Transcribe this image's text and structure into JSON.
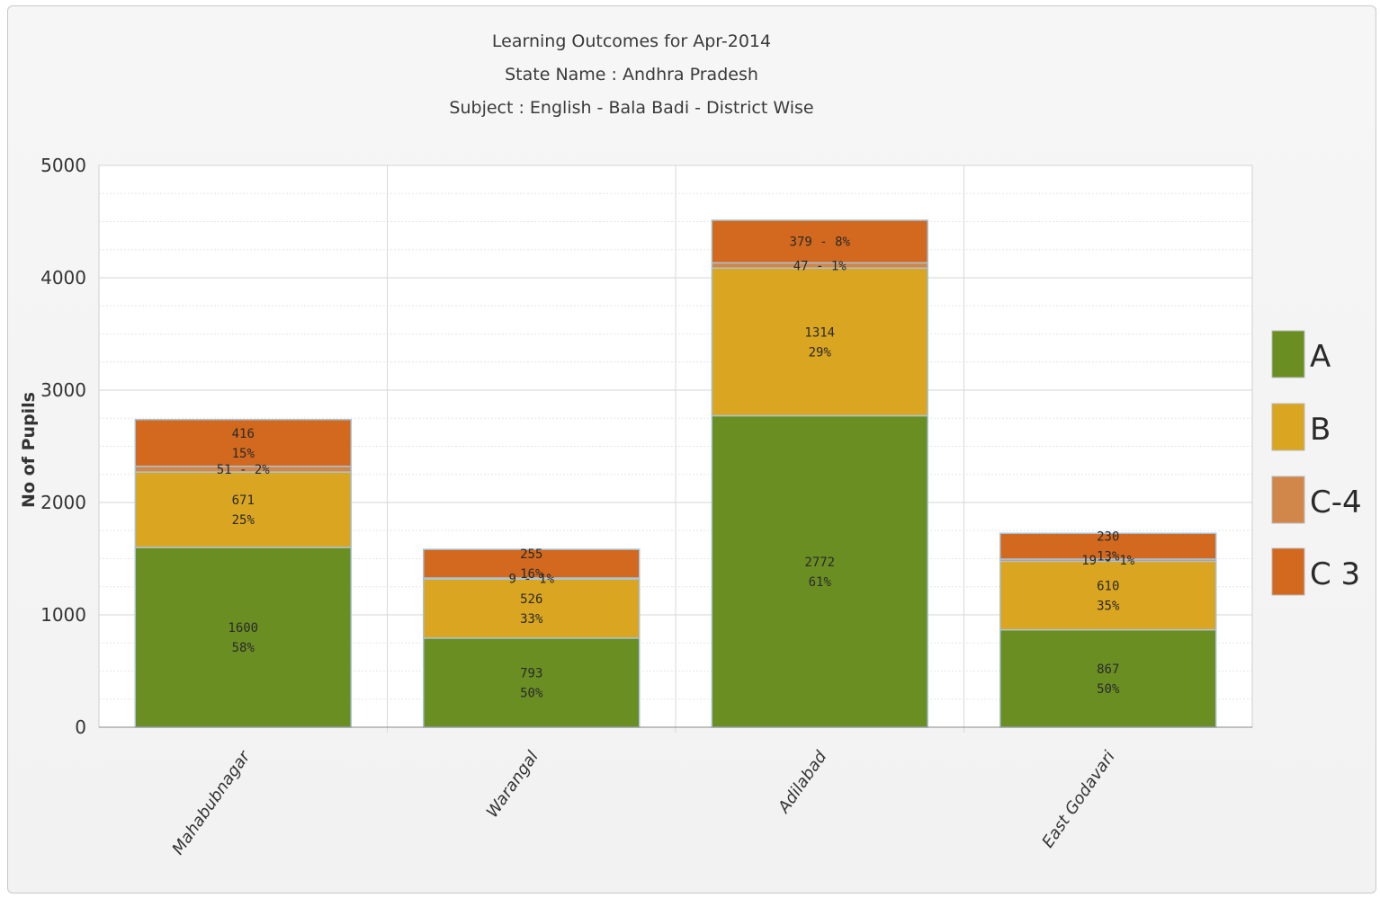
{
  "chart_data": {
    "type": "bar",
    "stacked": true,
    "title_lines": [
      "Learning Outcomes for Apr-2014",
      "State Name : Andhra Pradesh",
      "Subject : English - Bala Badi - District Wise"
    ],
    "xlabel": "",
    "ylabel": "No of Pupils",
    "ylim": [
      0,
      5000
    ],
    "yticks": [
      0,
      1000,
      2000,
      3000,
      4000,
      5000
    ],
    "grid": true,
    "legend_position": "right",
    "categories": [
      "Mahabubnagar",
      "Warangal",
      "Adilabad",
      "East Godavari"
    ],
    "series": [
      {
        "name": "A",
        "color": "#6b8e23",
        "values": [
          1600,
          793,
          2772,
          867
        ],
        "labels": [
          [
            "1600",
            "58%"
          ],
          [
            "793",
            "50%"
          ],
          [
            "2772",
            "61%"
          ],
          [
            "867",
            "50%"
          ]
        ]
      },
      {
        "name": "B",
        "color": "#daa520",
        "values": [
          671,
          526,
          1314,
          610
        ],
        "labels": [
          [
            "671",
            "25%"
          ],
          [
            "526",
            "33%"
          ],
          [
            "1314",
            "29%"
          ],
          [
            "610",
            "35%"
          ]
        ]
      },
      {
        "name": "C-4",
        "color": "#d2874a",
        "values": [
          51,
          9,
          47,
          19
        ],
        "labels": [
          [
            "51 - 2%"
          ],
          [
            "9 - 1%"
          ],
          [
            "47 - 1%"
          ],
          [
            "19 - 1%"
          ]
        ]
      },
      {
        "name": "C 3",
        "color": "#d2691e",
        "values": [
          416,
          255,
          379,
          230
        ],
        "labels": [
          [
            "416",
            "15%"
          ],
          [
            "255",
            "16%"
          ],
          [
            "379 - 8%"
          ],
          [
            "230",
            "13%"
          ]
        ]
      }
    ]
  }
}
